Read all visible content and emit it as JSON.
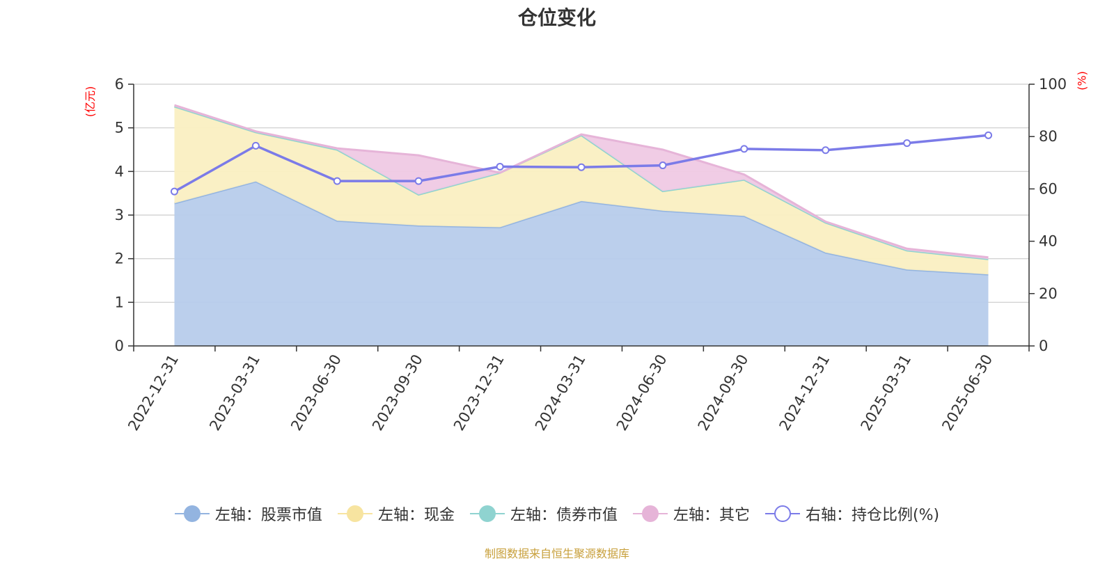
{
  "chart_data": {
    "type": "area",
    "title": "仓位变化",
    "left_axis_unit": "(亿元)",
    "right_axis_unit": "(%)",
    "categories": [
      "2022-12-31",
      "2023-03-31",
      "2023-06-30",
      "2023-09-30",
      "2023-12-31",
      "2024-03-31",
      "2024-06-30",
      "2024-09-30",
      "2024-12-31",
      "2025-03-31",
      "2025-06-30"
    ],
    "y_left": {
      "min": 0,
      "max": 6,
      "ticks": [
        "0",
        "1",
        "2",
        "3",
        "4",
        "5",
        "6"
      ]
    },
    "y_right": {
      "min": 0,
      "max": 100,
      "ticks": [
        "0",
        "20",
        "40",
        "60",
        "80",
        "100"
      ]
    },
    "grid": true,
    "stacked": true,
    "series": [
      {
        "name": "左轴：股票市值",
        "axis": "left",
        "kind": "area",
        "color": "#93b4e0",
        "fill": "#b7cceb",
        "values": [
          3.27,
          3.77,
          2.87,
          2.76,
          2.72,
          3.32,
          3.1,
          2.98,
          2.14,
          1.75,
          1.64
        ]
      },
      {
        "name": "左轴：现金",
        "axis": "left",
        "kind": "area",
        "color": "#f7e4a0",
        "fill": "#faefc2",
        "values": [
          2.22,
          1.13,
          1.63,
          0.71,
          1.25,
          1.51,
          0.45,
          0.83,
          0.69,
          0.44,
          0.35
        ]
      },
      {
        "name": "左轴：债券市值",
        "axis": "left",
        "kind": "area",
        "color": "#8fd3d0",
        "fill": "#c5e8e6",
        "values": [
          0,
          0,
          0,
          0,
          0,
          0,
          0,
          0,
          0,
          0,
          0
        ]
      },
      {
        "name": "左轴：其它",
        "axis": "left",
        "kind": "area",
        "color": "#e6b4d8",
        "fill": "#efc9e4",
        "values": [
          0.03,
          0.02,
          0.03,
          0.9,
          0.0,
          0.02,
          0.95,
          0.12,
          0.02,
          0.04,
          0.04
        ]
      },
      {
        "name": "右轴：持仓比例(%)",
        "axis": "right",
        "kind": "line",
        "color": "#7b7be8",
        "values": [
          59,
          76.5,
          63,
          63,
          68.5,
          68.3,
          69,
          75.3,
          74.8,
          77.5,
          80.5
        ]
      }
    ]
  },
  "legend": [
    {
      "label": "左轴：股票市值",
      "color": "#93b4e0",
      "style": "filled"
    },
    {
      "label": "左轴：现金",
      "color": "#f7e4a0",
      "style": "filled"
    },
    {
      "label": "左轴：债券市值",
      "color": "#8fd3d0",
      "style": "filled"
    },
    {
      "label": "左轴：其它",
      "color": "#e6b4d8",
      "style": "filled"
    },
    {
      "label": "右轴：持仓比例(%)",
      "color": "#7b7be8",
      "style": "hollow"
    }
  ],
  "source_text": "制图数据来自恒生聚源数据库"
}
